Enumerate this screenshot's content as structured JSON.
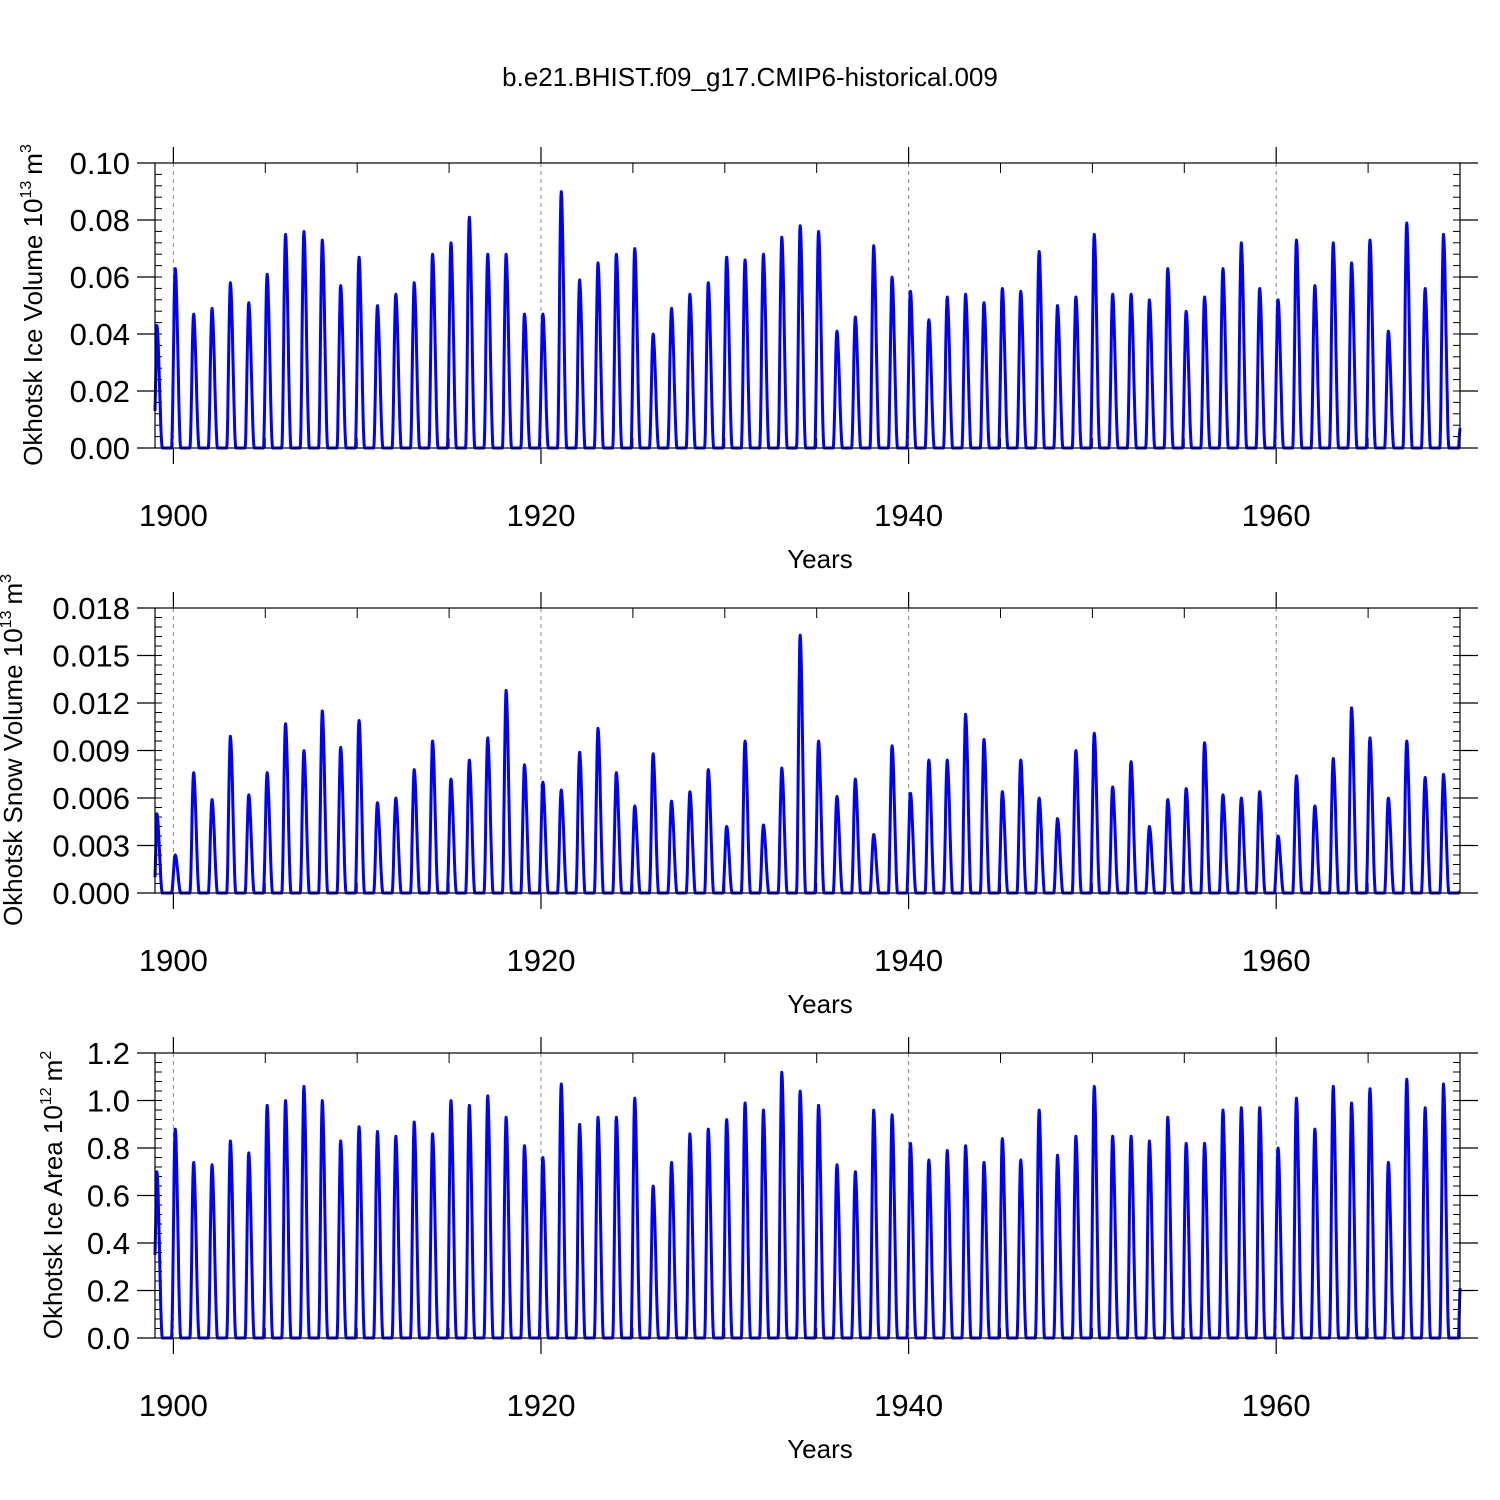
{
  "title": "b.e21.BHIST.f09_g17.CMIP6-historical.009",
  "series_color": "#0000ff",
  "chart_data": [
    {
      "type": "line",
      "xlabel": "Years",
      "ylabel": "Okhotsk Ice Volume 10",
      "ylabel_sup": "13",
      "ylabel_unit": "m",
      "ylabel_unit_sup": "3",
      "xlim": [
        1899,
        1970
      ],
      "ylim": [
        0,
        0.1
      ],
      "xticks": [
        1900,
        1920,
        1940,
        1960
      ],
      "yticks": [
        "0.00",
        "0.02",
        "0.04",
        "0.06",
        "0.08",
        "0.10"
      ],
      "ytick_values": [
        0,
        0.02,
        0.04,
        0.06,
        0.08,
        0.1
      ],
      "grid": "dashed vertical lines at major x ticks",
      "start_value": 0.013,
      "end_value": 0.007,
      "annual_peaks": [
        0.043,
        0.063,
        0.047,
        0.049,
        0.058,
        0.051,
        0.061,
        0.075,
        0.076,
        0.073,
        0.057,
        0.067,
        0.05,
        0.054,
        0.058,
        0.068,
        0.072,
        0.081,
        0.068,
        0.068,
        0.047,
        0.047,
        0.09,
        0.059,
        0.065,
        0.068,
        0.07,
        0.04,
        0.049,
        0.054,
        0.058,
        0.067,
        0.066,
        0.068,
        0.074,
        0.078,
        0.076,
        0.041,
        0.046,
        0.071,
        0.06,
        0.055,
        0.045,
        0.053,
        0.054,
        0.051,
        0.056,
        0.055,
        0.069,
        0.05,
        0.053,
        0.075,
        0.054,
        0.054,
        0.052,
        0.063,
        0.048,
        0.053,
        0.063,
        0.072,
        0.056,
        0.052,
        0.073,
        0.057,
        0.072,
        0.065,
        0.073,
        0.041,
        0.079,
        0.056,
        0.075
      ]
    },
    {
      "type": "line",
      "xlabel": "Years",
      "ylabel": "Okhotsk Snow Volume 10",
      "ylabel_sup": "13",
      "ylabel_unit": "m",
      "ylabel_unit_sup": "3",
      "xlim": [
        1899,
        1970
      ],
      "ylim": [
        0,
        0.018
      ],
      "xticks": [
        1900,
        1920,
        1940,
        1960
      ],
      "yticks": [
        "0.000",
        "0.003",
        "0.006",
        "0.009",
        "0.012",
        "0.015",
        "0.018"
      ],
      "ytick_values": [
        0,
        0.003,
        0.006,
        0.009,
        0.012,
        0.015,
        0.018
      ],
      "grid": "dashed vertical lines at major x ticks",
      "start_value": 0.001,
      "end_value": 0.0001,
      "annual_peaks": [
        0.005,
        0.0024,
        0.0076,
        0.0059,
        0.0099,
        0.0062,
        0.0076,
        0.0107,
        0.009,
        0.0115,
        0.0092,
        0.0109,
        0.0057,
        0.006,
        0.0078,
        0.0096,
        0.0072,
        0.0084,
        0.0098,
        0.0128,
        0.0081,
        0.007,
        0.0065,
        0.0089,
        0.0104,
        0.0076,
        0.0055,
        0.0088,
        0.0058,
        0.0064,
        0.0078,
        0.0042,
        0.0096,
        0.0043,
        0.0079,
        0.0163,
        0.0096,
        0.0061,
        0.0072,
        0.0037,
        0.0093,
        0.0063,
        0.0084,
        0.0084,
        0.0113,
        0.0097,
        0.0064,
        0.0084,
        0.006,
        0.0047,
        0.009,
        0.0101,
        0.0067,
        0.0083,
        0.0042,
        0.0059,
        0.0066,
        0.0095,
        0.0062,
        0.006,
        0.0064,
        0.0036,
        0.0074,
        0.0055,
        0.0085,
        0.0117,
        0.0098,
        0.006,
        0.0096,
        0.0073,
        0.0075
      ]
    },
    {
      "type": "line",
      "xlabel": "Years",
      "ylabel": "Okhotsk Ice Area 10",
      "ylabel_sup": "12",
      "ylabel_unit": "m",
      "ylabel_unit_sup": "2",
      "xlim": [
        1899,
        1970
      ],
      "ylim": [
        0,
        1.2
      ],
      "xticks": [
        1900,
        1920,
        1940,
        1960
      ],
      "yticks": [
        "0.0",
        "0.2",
        "0.4",
        "0.6",
        "0.8",
        "1.0",
        "1.2"
      ],
      "ytick_values": [
        0,
        0.2,
        0.4,
        0.6,
        0.8,
        1.0,
        1.2
      ],
      "grid": "dashed vertical lines at major x ticks",
      "start_value": 0.35,
      "end_value": 0.21,
      "annual_peaks": [
        0.7,
        0.88,
        0.74,
        0.73,
        0.83,
        0.78,
        0.98,
        1.0,
        1.06,
        1.0,
        0.83,
        0.89,
        0.87,
        0.85,
        0.91,
        0.86,
        1.0,
        0.98,
        1.02,
        0.93,
        0.81,
        0.76,
        1.07,
        0.9,
        0.93,
        0.93,
        1.01,
        0.64,
        0.74,
        0.86,
        0.88,
        0.92,
        0.99,
        0.96,
        1.12,
        1.04,
        0.98,
        0.73,
        0.7,
        0.96,
        0.94,
        0.82,
        0.75,
        0.79,
        0.81,
        0.74,
        0.84,
        0.75,
        0.96,
        0.77,
        0.85,
        1.06,
        0.85,
        0.85,
        0.83,
        0.93,
        0.82,
        0.82,
        0.96,
        0.97,
        0.97,
        0.8,
        1.01,
        0.88,
        1.06,
        0.99,
        1.05,
        0.74,
        1.09,
        0.97,
        1.07
      ]
    }
  ]
}
